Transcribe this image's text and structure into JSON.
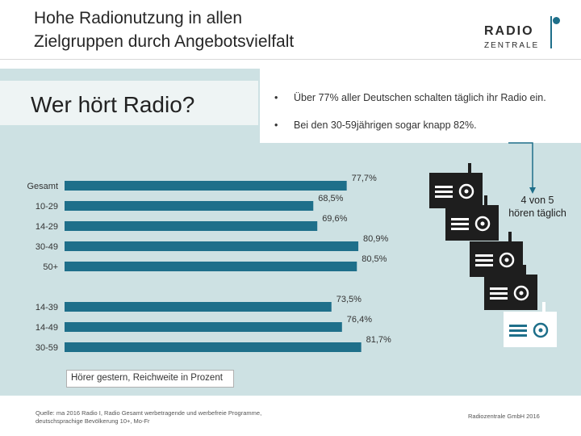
{
  "header": {
    "title": "Hohe Radionutzung in allen\nZielgruppen durch Angebotsvielfalt",
    "logo_line1": "RADIO",
    "logo_line2": "ZENTRALE"
  },
  "question": "Wer hört Radio?",
  "bullets": [
    "Über 77% aller Deutschen schalten täglich ihr Radio ein.",
    "Bei den 30-59jährigen sogar knapp 82%."
  ],
  "bullet_symbol": "•",
  "stat_text": "4 von 5\nhören täglich",
  "chart_data": {
    "type": "bar",
    "orientation": "horizontal",
    "categories": [
      "Gesamt",
      "10-29",
      "14-29",
      "30-49",
      "50+",
      "14-39",
      "14-49",
      "30-59"
    ],
    "values": [
      77.7,
      68.5,
      69.6,
      80.9,
      80.5,
      73.5,
      76.4,
      81.7
    ],
    "value_labels": [
      "77,7%",
      "68,5%",
      "69,6%",
      "80,9%",
      "80,5%",
      "73,5%",
      "76,4%",
      "81,7%"
    ],
    "xlim": [
      0,
      100
    ],
    "title": "",
    "xlabel": "",
    "ylabel": "",
    "grid": false,
    "legend": "Hörer gestern, Reichweite in Prozent",
    "bar_color": "#1e6f8a"
  },
  "colors": {
    "accent": "#1e6f8a",
    "panel": "#cde1e3",
    "icon_dark": "#1e1e1e"
  },
  "footer": {
    "source": "Quelle: ma 2016 Radio I, Radio Gesamt werbetragende und werbefreie Programme,\ndeutschsprachige Bevölkerung 10+, Mo-Fr",
    "copyright": "Radiozentrale GmbH 2016"
  }
}
